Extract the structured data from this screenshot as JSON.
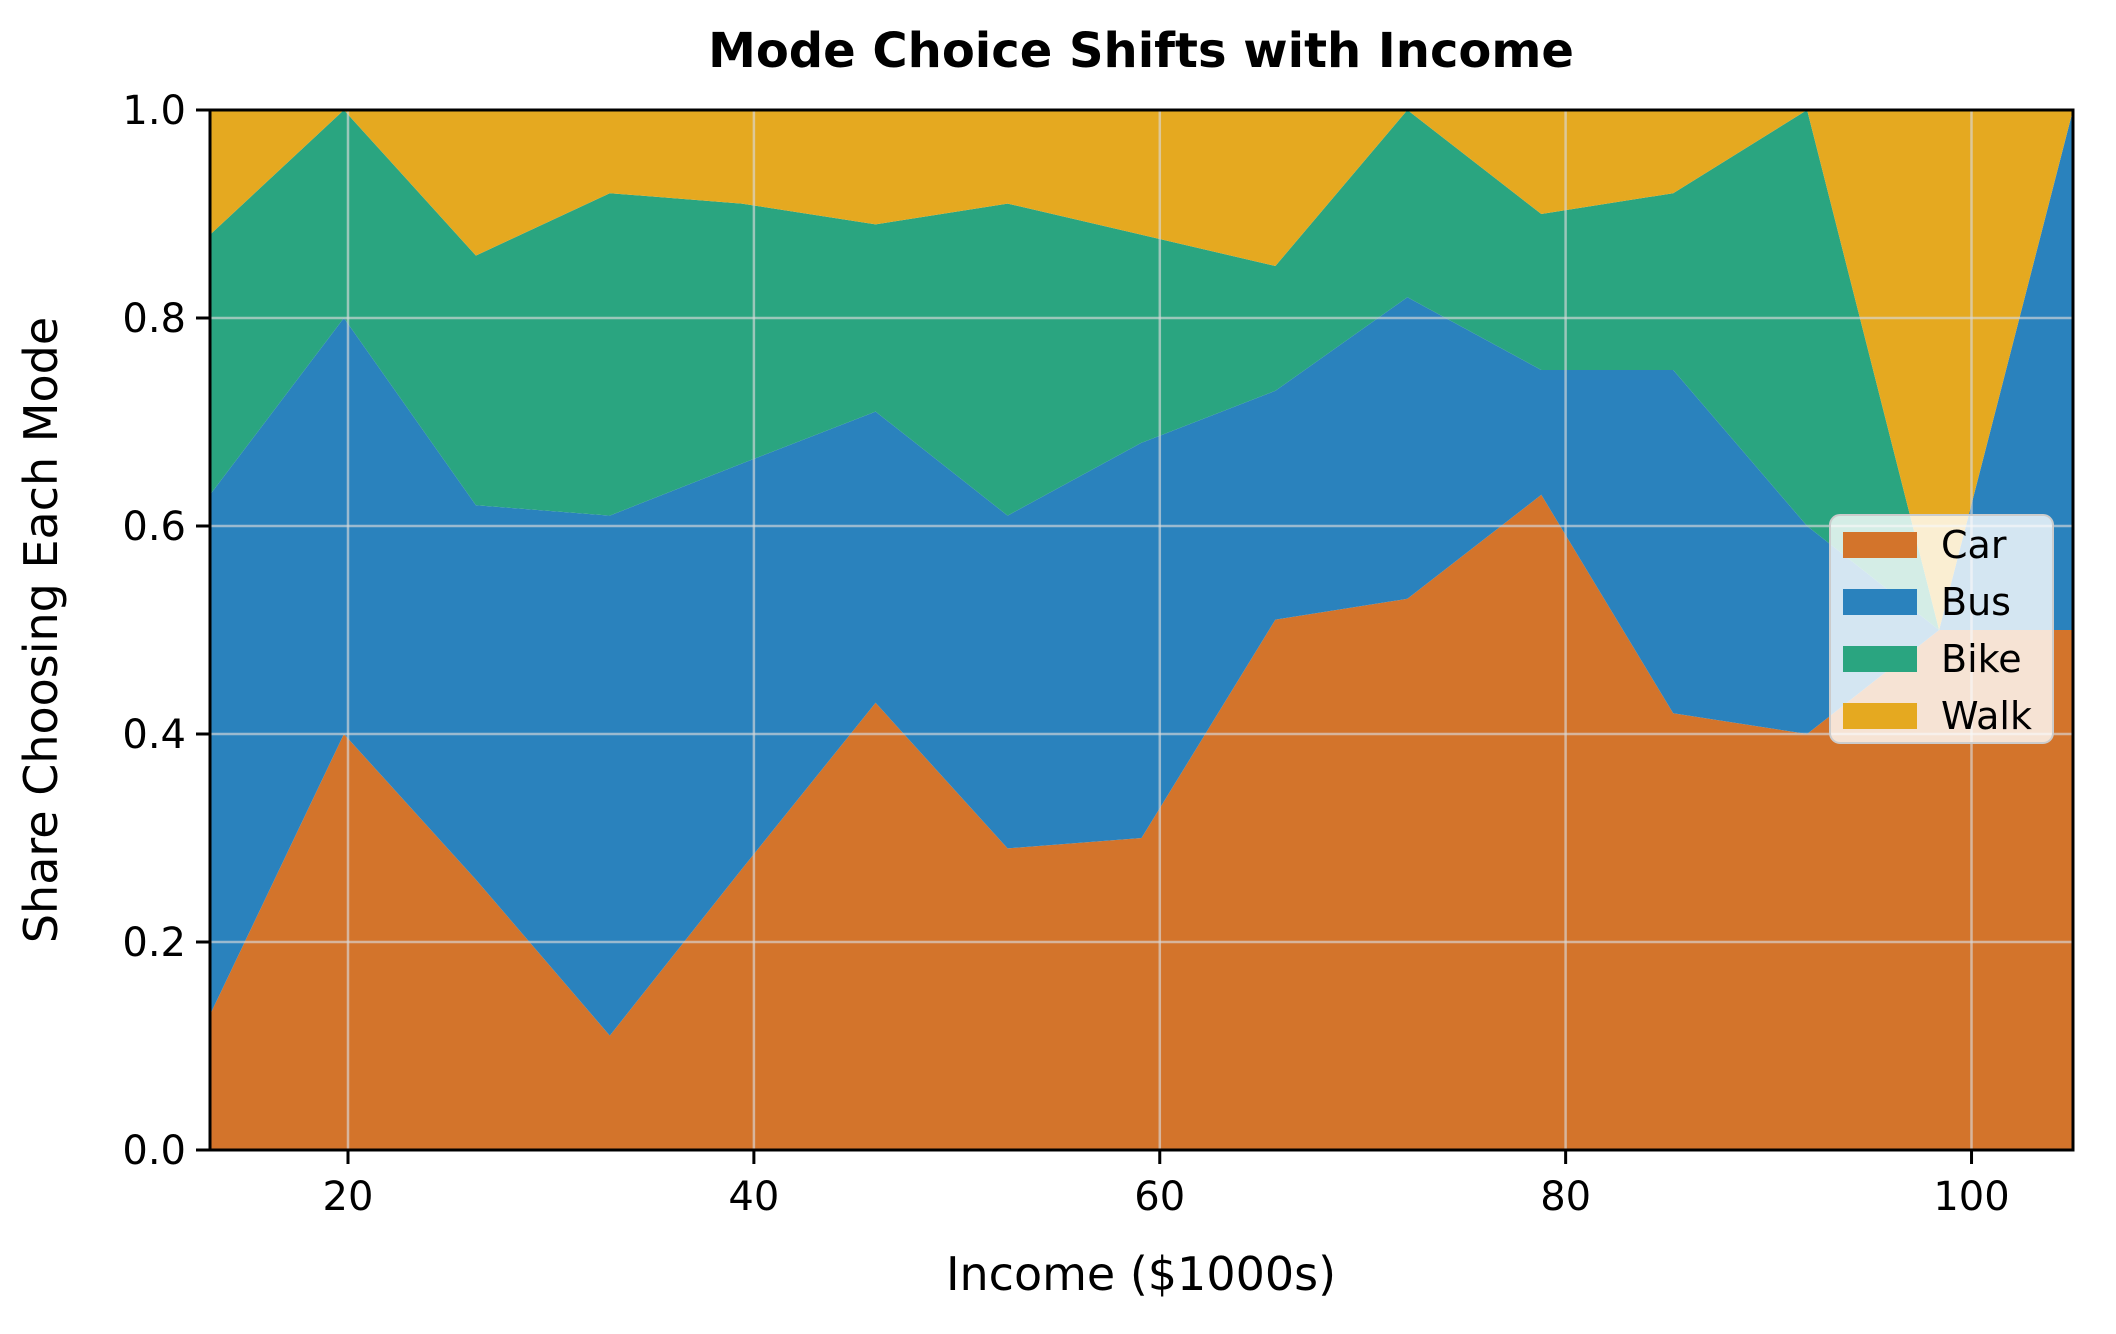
{
  "figure": {
    "title": "Mode Choice Shifts with Income",
    "xlabel": "Income ($1000s)",
    "ylabel": "Share Choosing Each Mode"
  },
  "colors": {
    "car": "#D3742B",
    "bus": "#2A82BD",
    "bike": "#2AA580",
    "walk": "#E5A920",
    "grid": "#D9D9D9",
    "spine": "#000000",
    "legend_background": "rgba(255,255,255,0.8)",
    "legend_border": "#CCCCCC"
  },
  "chart_data": {
    "type": "area",
    "stacked": true,
    "title": "Mode Choice Shifts with Income",
    "xlabel": "Income ($1000s)",
    "ylabel": "Share Choosing Each Mode",
    "xlim": [
      13.2,
      105.0
    ],
    "ylim": [
      0.0,
      1.0
    ],
    "grid": true,
    "legend_position": "center right",
    "x": [
      13.2,
      19.8,
      26.3,
      32.9,
      39.4,
      46.0,
      52.5,
      59.1,
      65.7,
      72.2,
      78.8,
      85.3,
      91.9,
      98.4,
      105.0
    ],
    "series": [
      {
        "name": "Car",
        "color_key": "car",
        "values": [
          0.13,
          0.4,
          0.26,
          0.11,
          0.27,
          0.43,
          0.29,
          0.3,
          0.51,
          0.53,
          0.63,
          0.42,
          0.4,
          0.5,
          0.5
        ]
      },
      {
        "name": "Bus",
        "color_key": "bus",
        "values": [
          0.5,
          0.4,
          0.36,
          0.5,
          0.39,
          0.28,
          0.32,
          0.38,
          0.22,
          0.29,
          0.12,
          0.33,
          0.2,
          0.0,
          0.5
        ]
      },
      {
        "name": "Bike",
        "color_key": "bike",
        "values": [
          0.25,
          0.2,
          0.24,
          0.31,
          0.25,
          0.18,
          0.3,
          0.2,
          0.12,
          0.18,
          0.15,
          0.17,
          0.4,
          0.0,
          0.0
        ]
      },
      {
        "name": "Walk",
        "color_key": "walk",
        "values": [
          0.12,
          0.0,
          0.14,
          0.08,
          0.09,
          0.11,
          0.09,
          0.12,
          0.15,
          0.0,
          0.1,
          0.08,
          0.0,
          0.5,
          0.0
        ]
      }
    ],
    "xticks": {
      "values": [
        20,
        40,
        60,
        80,
        100
      ],
      "labels": [
        "20",
        "40",
        "60",
        "80",
        "100"
      ]
    },
    "yticks": {
      "values": [
        0.0,
        0.2,
        0.4,
        0.6,
        0.8,
        1.0
      ],
      "labels": [
        "0.0",
        "0.2",
        "0.4",
        "0.6",
        "0.8",
        "1.0"
      ]
    }
  },
  "legend": {
    "entries": [
      {
        "label": "Car",
        "color_key": "car"
      },
      {
        "label": "Bus",
        "color_key": "bus"
      },
      {
        "label": "Bike",
        "color_key": "bike"
      },
      {
        "label": "Walk",
        "color_key": "walk"
      }
    ]
  }
}
